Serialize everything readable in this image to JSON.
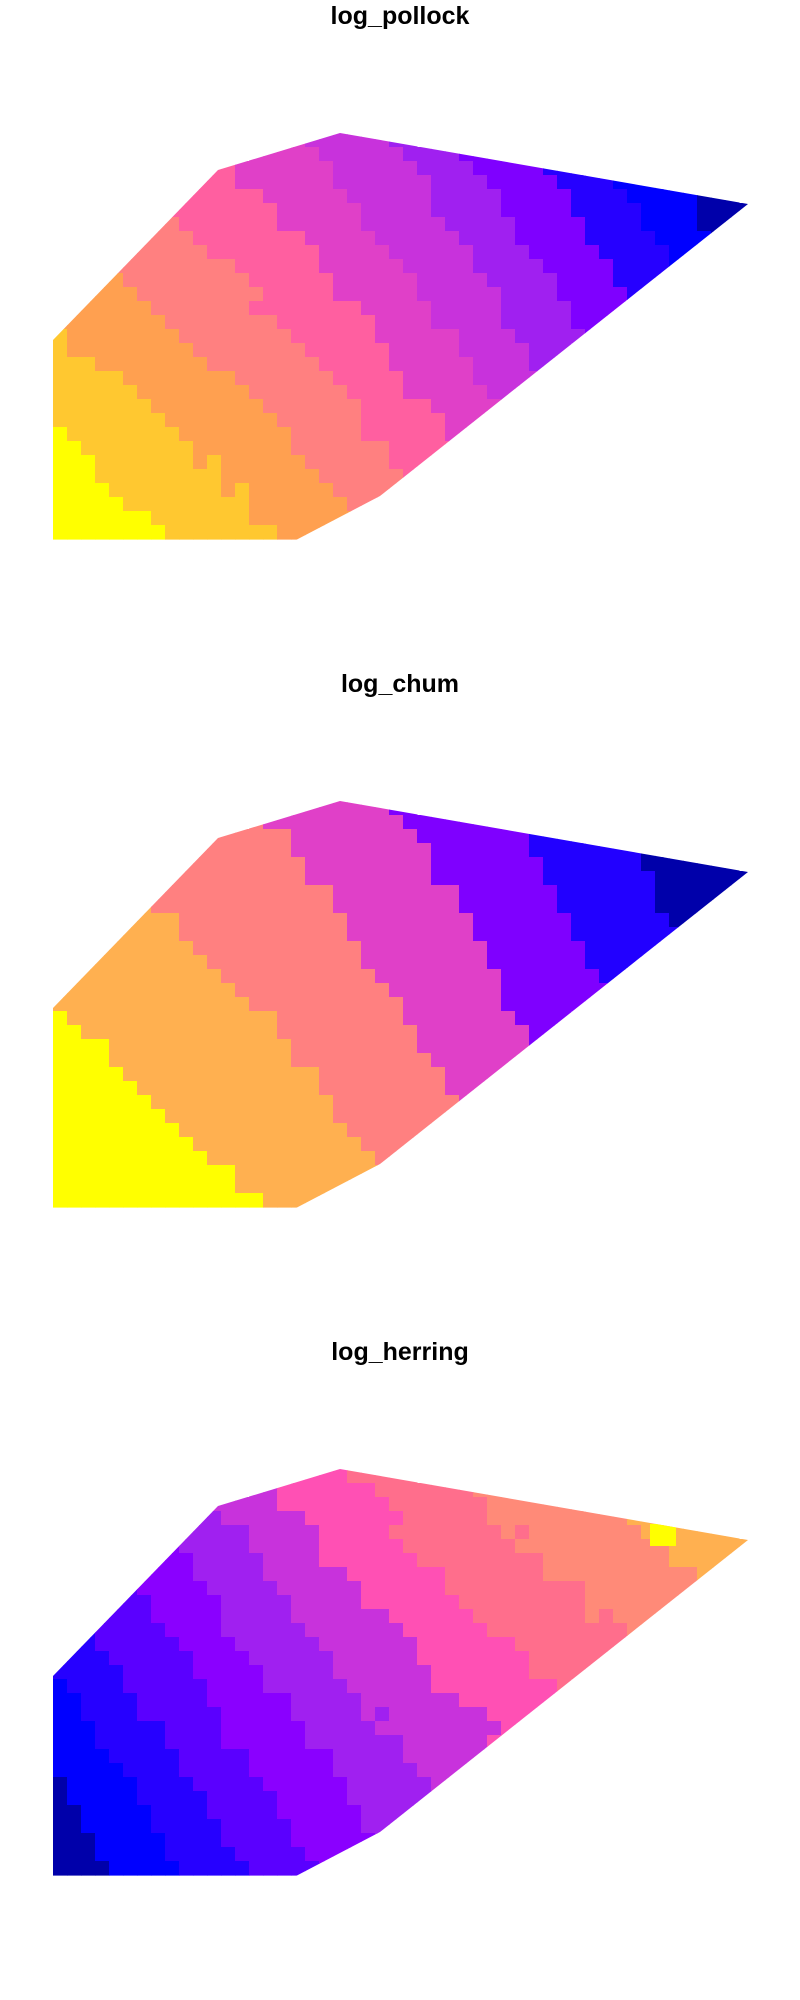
{
  "chart_data": [
    {
      "type": "heatmap",
      "title": "log_pollock",
      "palette": [
        "#0000AA",
        "#0000FF",
        "#2600FF",
        "#7F00FF",
        "#A020F0",
        "#C832DC",
        "#E040C8",
        "#FF5FA0",
        "#FF8080",
        "#FFA050",
        "#FFC830",
        "#FFFF00"
      ],
      "gradient": {
        "direction": [
          -0.78,
          0.62
        ],
        "wobble": 0.5
      },
      "highlight_cells": []
    },
    {
      "type": "heatmap",
      "title": "log_chum",
      "palette": [
        "#0000AA",
        "#2200FF",
        "#7F00FF",
        "#E040C8",
        "#FF8080",
        "#FFB050",
        "#FFFF00"
      ],
      "gradient": {
        "direction": [
          -0.82,
          0.58
        ],
        "wobble": 0.4
      },
      "highlight_cells": []
    },
    {
      "type": "heatmap",
      "title": "log_herring",
      "palette": [
        "#0000AA",
        "#0000FF",
        "#2600FF",
        "#5A00FF",
        "#8A00FF",
        "#A020F0",
        "#C832DC",
        "#FF50B4",
        "#FF6E8C",
        "#FF8A78",
        "#FFB050",
        "#FFD22E"
      ],
      "gradient": {
        "direction": [
          0.78,
          -0.62
        ],
        "wobble": 0.5
      },
      "highlight_cells": [
        {
          "color": "#FFFF00",
          "level_note": "max"
        }
      ]
    }
  ]
}
